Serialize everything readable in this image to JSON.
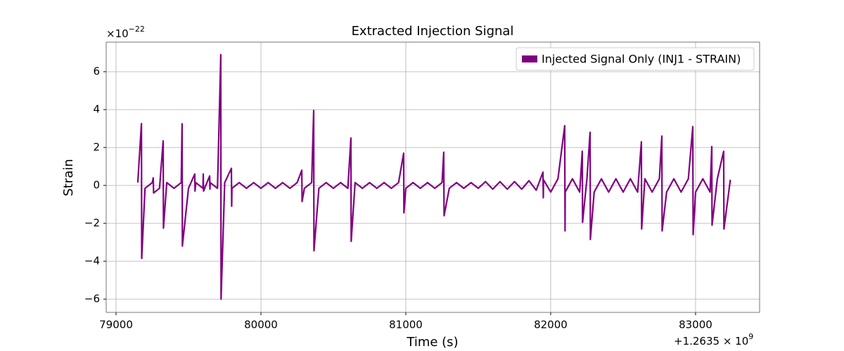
{
  "chart_data": {
    "type": "line",
    "title": "Extracted Injection Signal",
    "x_label": "Time (s)",
    "y_label": "Strain",
    "y_offset": {
      "base": "×10",
      "exponent": "−22"
    },
    "x_offset": {
      "base": "+1.2635 × 10",
      "exponent": "9"
    },
    "xlim": [
      78932,
      83442
    ],
    "ylim": [
      -6.7,
      7.56
    ],
    "xticks": [
      79000,
      80000,
      81000,
      82000,
      83000
    ],
    "yticks": [
      {
        "value": -6,
        "label": "−6"
      },
      {
        "value": -4,
        "label": "−4"
      },
      {
        "value": -2,
        "label": "−2"
      },
      0,
      2,
      4,
      6
    ],
    "grid": true,
    "legend": "upper right",
    "series": [
      {
        "name": "Injected Signal Only (INJ1 - STRAIN)",
        "color": "#800080",
        "x": [
          79150,
          79175,
          79177,
          79200,
          79250,
          79257,
          79259,
          79300,
          79325,
          79327,
          79350,
          79400,
          79450,
          79456,
          79458,
          79500,
          79543,
          79545,
          79550,
          79600,
          79602,
          79604,
          79646,
          79648,
          79650,
          79700,
          79723,
          79725,
          79750,
          79796,
          79798,
          79800,
          79850,
          79900,
          79950,
          80000,
          80050,
          80100,
          80150,
          80200,
          80250,
          80282,
          80284,
          80300,
          80350,
          80364,
          80366,
          80400,
          80450,
          80500,
          80550,
          80600,
          80621,
          80623,
          80650,
          80700,
          80750,
          80800,
          80850,
          80900,
          80950,
          80985,
          80987,
          81000,
          81050,
          81100,
          81150,
          81200,
          81250,
          81262,
          81264,
          81300,
          81350,
          81400,
          81450,
          81500,
          81550,
          81600,
          81650,
          81700,
          81750,
          81800,
          81850,
          81900,
          81947,
          81949,
          81950,
          82000,
          82050,
          82097,
          82099,
          82100,
          82150,
          82200,
          82218,
          82220,
          82250,
          82272,
          82274,
          82300,
          82350,
          82400,
          82450,
          82500,
          82550,
          82600,
          82626,
          82628,
          82650,
          82700,
          82750,
          82767,
          82769,
          82800,
          82850,
          82900,
          82950,
          82981,
          82983,
          83000,
          83050,
          83100,
          83112,
          83114,
          83150,
          83194,
          83196,
          83240
        ],
        "values": [
          0.15,
          3.26,
          -3.85,
          -0.15,
          0.15,
          0.4,
          -0.4,
          -0.15,
          2.35,
          -2.25,
          0.15,
          -0.15,
          0.15,
          3.25,
          -3.2,
          -0.15,
          0.6,
          -0.3,
          0.15,
          -0.15,
          0.6,
          -0.3,
          0.5,
          -0.2,
          0.15,
          -0.15,
          6.9,
          -6.0,
          0.15,
          0.9,
          -1.1,
          -0.15,
          0.15,
          -0.15,
          0.15,
          -0.15,
          0.15,
          -0.15,
          0.15,
          -0.15,
          0.15,
          0.8,
          -0.85,
          -0.15,
          0.15,
          3.95,
          -3.45,
          -0.15,
          0.15,
          -0.15,
          0.15,
          -0.15,
          2.5,
          -2.95,
          0.15,
          -0.15,
          0.15,
          -0.15,
          0.15,
          -0.15,
          0.15,
          1.7,
          -1.45,
          -0.15,
          0.15,
          -0.15,
          0.15,
          -0.15,
          0.15,
          1.75,
          -1.6,
          -0.15,
          0.15,
          -0.15,
          0.15,
          -0.15,
          0.2,
          -0.2,
          0.2,
          -0.2,
          0.2,
          -0.2,
          0.25,
          -0.25,
          0.7,
          -0.65,
          0.3,
          -0.35,
          0.35,
          3.15,
          -2.4,
          -0.35,
          0.35,
          -0.35,
          1.8,
          -1.95,
          0.35,
          2.8,
          -2.85,
          -0.35,
          0.35,
          -0.35,
          0.35,
          -0.35,
          0.35,
          -0.35,
          2.3,
          -2.3,
          0.35,
          -0.35,
          0.35,
          2.6,
          -2.4,
          -0.35,
          0.35,
          -0.35,
          0.35,
          3.1,
          -2.6,
          -0.35,
          0.35,
          -0.35,
          2.05,
          -2.1,
          0.35,
          1.8,
          -2.3,
          0.3
        ]
      }
    ]
  }
}
